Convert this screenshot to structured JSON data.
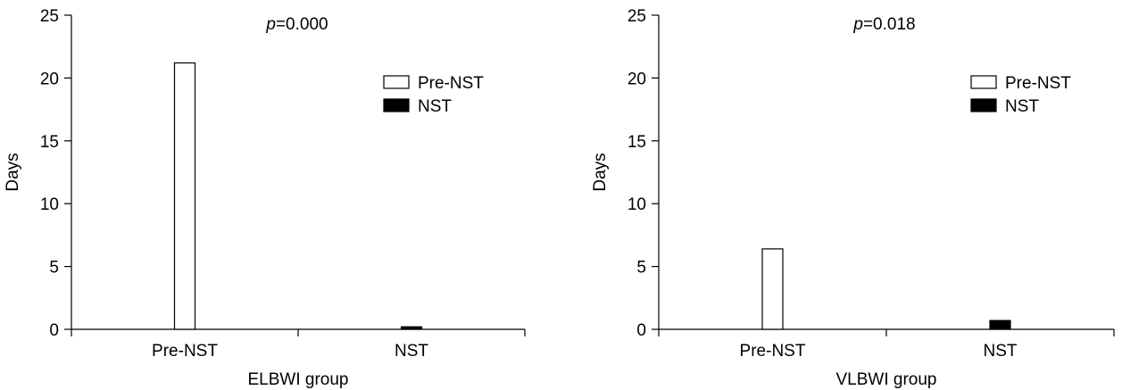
{
  "chart_data": [
    {
      "type": "bar",
      "categories": [
        "Pre-NST",
        "NST"
      ],
      "series": [
        {
          "name": "Pre-NST",
          "values": [
            21.2,
            null
          ],
          "color": "#ffffff"
        },
        {
          "name": "NST",
          "values": [
            null,
            0.2
          ],
          "color": "#000000"
        }
      ],
      "annotation_prefix": "p",
      "annotation_value": "=0.000",
      "xlabel": "ELBWI group",
      "ylabel": "Days",
      "ylim": [
        0,
        25
      ],
      "yticks": [
        0,
        5,
        10,
        15,
        20,
        25
      ],
      "grid": false,
      "legend_position": "top-right"
    },
    {
      "type": "bar",
      "categories": [
        "Pre-NST",
        "NST"
      ],
      "series": [
        {
          "name": "Pre-NST",
          "values": [
            6.4,
            null
          ],
          "color": "#ffffff"
        },
        {
          "name": "NST",
          "values": [
            null,
            0.7
          ],
          "color": "#000000"
        }
      ],
      "annotation_prefix": "p",
      "annotation_value": "=0.018",
      "xlabel": "VLBWI group",
      "ylabel": "Days",
      "ylim": [
        0,
        25
      ],
      "yticks": [
        0,
        5,
        10,
        15,
        20,
        25
      ],
      "grid": false,
      "legend_position": "top-right"
    }
  ]
}
